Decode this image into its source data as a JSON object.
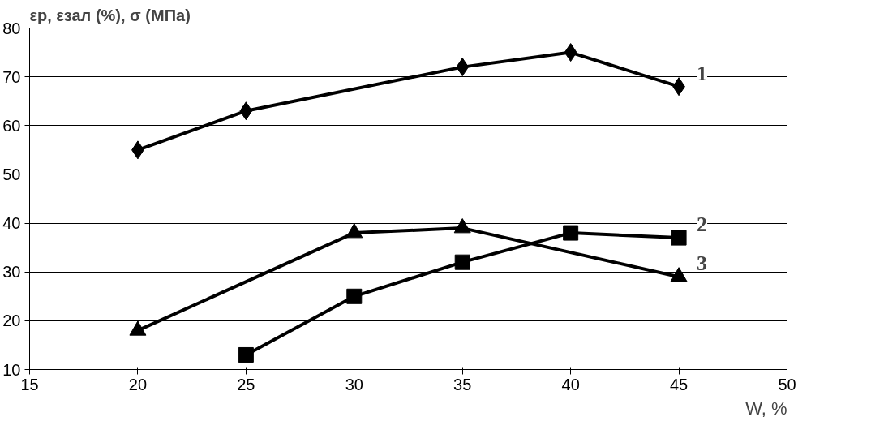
{
  "chart_data": {
    "type": "line",
    "ylabel": "εр, εзал (%), σ (МПа)",
    "xlabel": "W, %",
    "xlim": [
      15,
      50
    ],
    "xticks": [
      15,
      20,
      25,
      30,
      35,
      40,
      45,
      50
    ],
    "ylim": [
      10,
      80
    ],
    "yticks": [
      10,
      20,
      30,
      40,
      50,
      60,
      70,
      80
    ],
    "grid": "y",
    "line_style": "solid",
    "series": [
      {
        "name": "1",
        "color": "#000000",
        "marker": "diamond",
        "x": [
          20,
          25,
          35,
          40,
          45
        ],
        "values": [
          55,
          63,
          72,
          75,
          68
        ]
      },
      {
        "name": "2",
        "color": "#000000",
        "marker": "square",
        "x": [
          25,
          30,
          35,
          40,
          45
        ],
        "values": [
          13,
          25,
          32,
          38,
          37
        ]
      },
      {
        "name": "3",
        "color": "#000000",
        "marker": "triangle",
        "x": [
          20,
          30,
          35,
          45
        ],
        "values": [
          18,
          38,
          39,
          29
        ]
      }
    ]
  }
}
